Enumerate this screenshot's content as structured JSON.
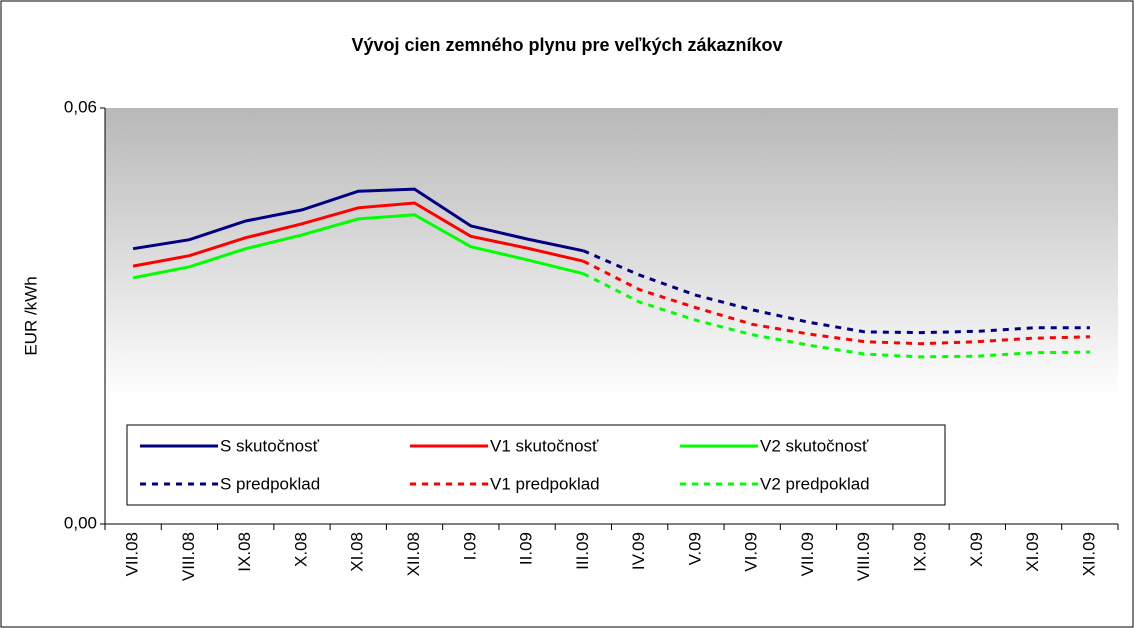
{
  "chart_data": {
    "type": "line",
    "title": "Vývoj cien zemného plynu pre veľkých zákazníkov",
    "y_label": "EUR /kWh",
    "categories": [
      "VII.08",
      "VIII.08",
      "IX.08",
      "X.08",
      "XI.08",
      "XII.08",
      "I.09",
      "II.09",
      "III.09",
      "IV.09",
      "V.09",
      "VI.09",
      "VII.09",
      "VIII.09",
      "IX.09",
      "X.09",
      "XI.09",
      "XII.09"
    ],
    "ylim": [
      0,
      0.06
    ],
    "yticks": [
      {
        "value": 0,
        "label": "0,00"
      },
      {
        "value": 0.06,
        "label": "0,06"
      }
    ],
    "grid": false,
    "legend": "bottom-left",
    "series": [
      {
        "name": "S skutočnosť",
        "color": "#000080",
        "style": "solid",
        "values": [
          0.0397,
          0.041,
          0.0437,
          0.0453,
          0.048,
          0.0483,
          0.043,
          0.0411,
          0.0394,
          null,
          null,
          null,
          null,
          null,
          null,
          null,
          null,
          null
        ]
      },
      {
        "name": "V1 skutočnosť",
        "color": "#ff0000",
        "style": "solid",
        "values": [
          0.0372,
          0.0387,
          0.0413,
          0.0433,
          0.0456,
          0.0463,
          0.0415,
          0.0398,
          0.0379,
          null,
          null,
          null,
          null,
          null,
          null,
          null,
          null,
          null
        ]
      },
      {
        "name": "V2 skutočnosť",
        "color": "#00ff00",
        "style": "solid",
        "values": [
          0.0355,
          0.0371,
          0.0397,
          0.0417,
          0.044,
          0.0446,
          0.04,
          0.0381,
          0.0361,
          null,
          null,
          null,
          null,
          null,
          null,
          null,
          null,
          null
        ]
      },
      {
        "name": "S predpoklad",
        "color": "#000080",
        "style": "dotted",
        "values": [
          null,
          null,
          null,
          null,
          null,
          null,
          null,
          null,
          0.0394,
          0.0359,
          0.033,
          0.0309,
          0.0291,
          0.0277,
          0.0276,
          0.0278,
          0.0283,
          0.0283
        ]
      },
      {
        "name": "V1 predpoklad",
        "color": "#ff0000",
        "style": "dotted",
        "values": [
          null,
          null,
          null,
          null,
          null,
          null,
          null,
          null,
          0.0379,
          0.0338,
          0.0312,
          0.0288,
          0.0274,
          0.0263,
          0.026,
          0.0263,
          0.0268,
          0.027
        ]
      },
      {
        "name": "V2 predpoklad",
        "color": "#00ff00",
        "style": "dotted",
        "values": [
          null,
          null,
          null,
          null,
          null,
          null,
          null,
          null,
          0.0361,
          0.032,
          0.0294,
          0.0273,
          0.0258,
          0.0245,
          0.0241,
          0.0242,
          0.0247,
          0.0248
        ]
      }
    ]
  }
}
